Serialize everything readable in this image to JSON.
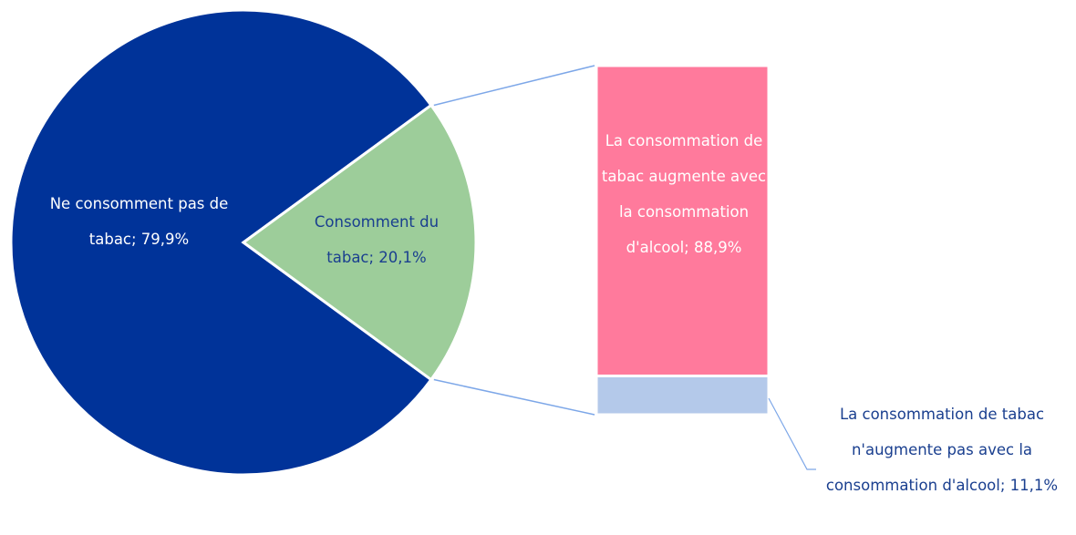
{
  "chart_data": {
    "type": "bar-of-pie",
    "values": [
      79.9,
      20.1
    ],
    "value_labels": [
      "Ne consomment pas de tabac; 79,9%",
      "Consomment du tabac; 20,1%"
    ],
    "colors": [
      "#003399",
      "#9dcd9a"
    ],
    "breakdown": {
      "values": [
        88.9,
        11.1
      ],
      "value_labels": [
        "La consommation de tabac augmente avec la consommation d'alcool; 88,9%",
        "La consommation de tabac n'augmente pas avec la consommation d'alcool; 11,1%"
      ],
      "colors": [
        "#ff7a9c",
        "#b4c9ea"
      ]
    }
  }
}
